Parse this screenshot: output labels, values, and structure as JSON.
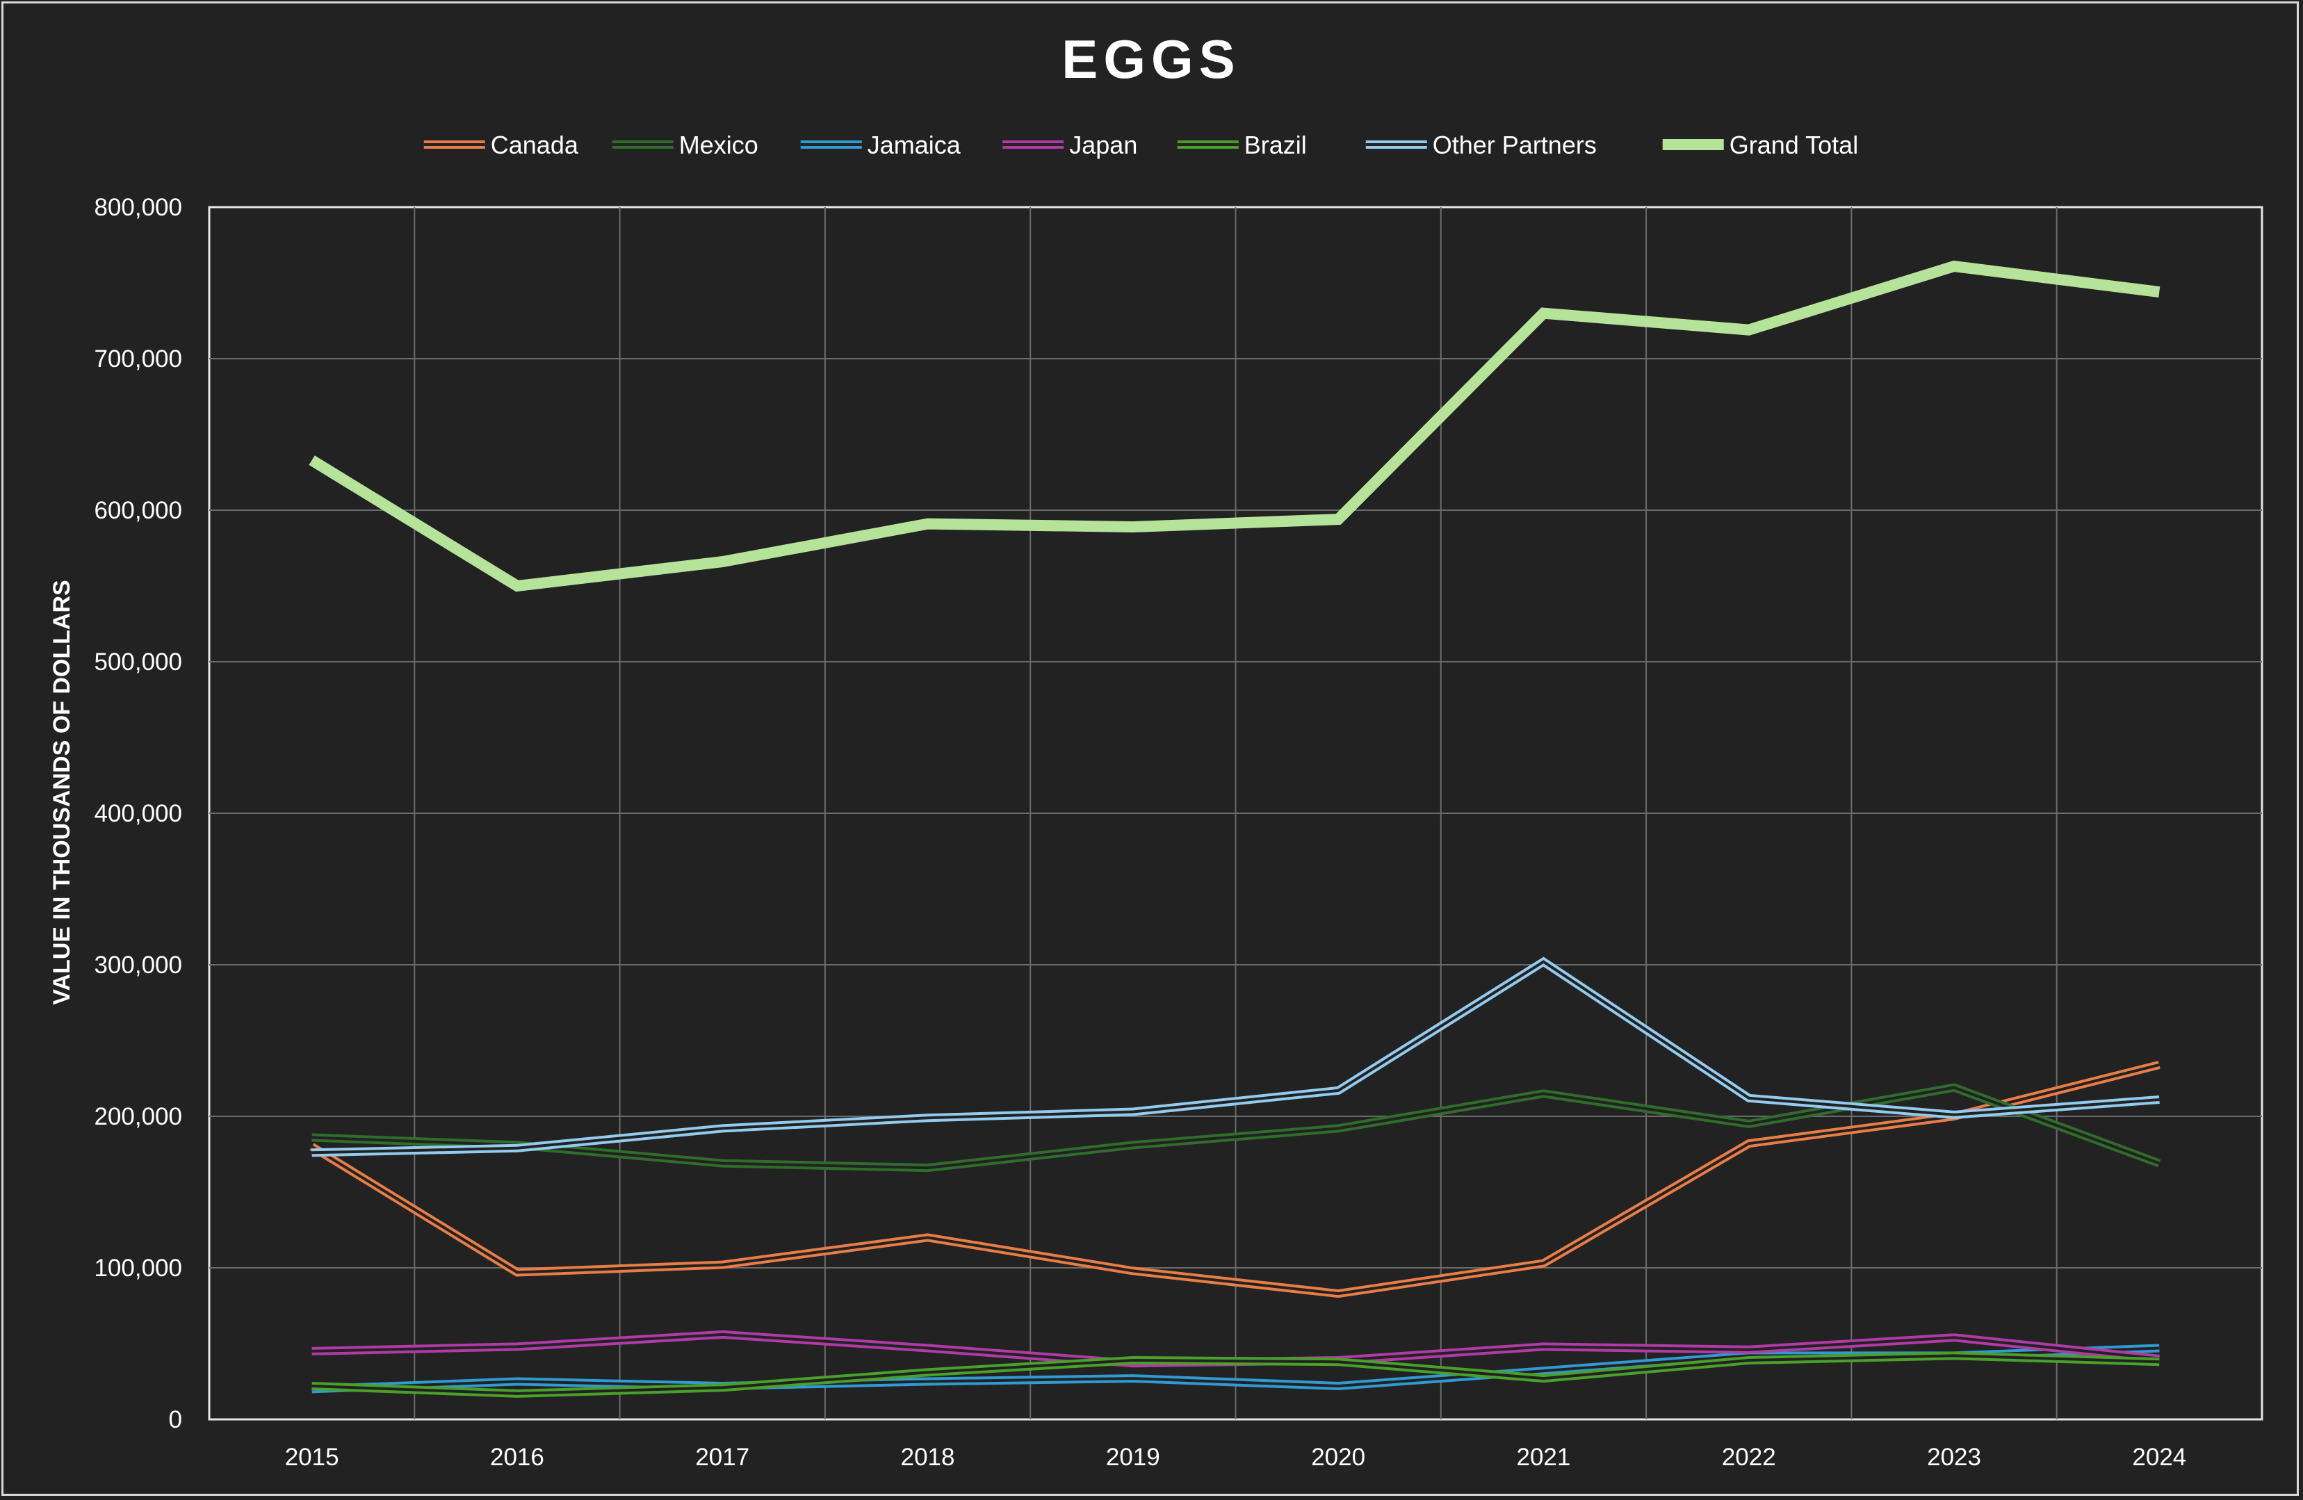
{
  "chart_data": {
    "type": "line",
    "title": "EGGS",
    "xlabel": "",
    "ylabel": "VALUE IN THOUSANDS OF DOLLARS",
    "ylim": [
      0,
      800000
    ],
    "yticks": [
      0,
      100000,
      200000,
      300000,
      400000,
      500000,
      600000,
      700000,
      800000
    ],
    "ytick_labels": [
      "0",
      "100,000",
      "200,000",
      "300,000",
      "400,000",
      "500,000",
      "600,000",
      "700,000",
      "800,000"
    ],
    "categories": [
      "2015",
      "2016",
      "2017",
      "2018",
      "2019",
      "2020",
      "2021",
      "2022",
      "2023",
      "2024"
    ],
    "grid": true,
    "legend_position": "top",
    "series": [
      {
        "name": "Canada",
        "color": "#e97d46",
        "style": "double",
        "values": [
          180000,
          97000,
          102000,
          120000,
          98000,
          83000,
          103000,
          182000,
          200000,
          234000
        ]
      },
      {
        "name": "Mexico",
        "color": "#2f6e2a",
        "style": "double",
        "values": [
          186000,
          181000,
          169000,
          166000,
          181000,
          192000,
          215000,
          195000,
          219000,
          169000
        ]
      },
      {
        "name": "Jamaica",
        "color": "#2e9bd3",
        "style": "double",
        "values": [
          20000,
          25000,
          22000,
          25000,
          27000,
          22000,
          32000,
          42000,
          42000,
          47000
        ]
      },
      {
        "name": "Japan",
        "color": "#b03aa6",
        "style": "double",
        "values": [
          45000,
          48000,
          56000,
          47000,
          37000,
          39000,
          48000,
          46000,
          54000,
          40000
        ]
      },
      {
        "name": "Brazil",
        "color": "#4aa12a",
        "style": "double",
        "values": [
          22000,
          17000,
          21000,
          31000,
          39000,
          38000,
          27000,
          39000,
          42000,
          38000
        ]
      },
      {
        "name": "Other Partners",
        "color": "#92cbee",
        "style": "double",
        "values": [
          176000,
          179000,
          192000,
          199000,
          203000,
          217000,
          302000,
          212000,
          201000,
          211000
        ]
      },
      {
        "name": "Grand Total",
        "color": "#b6e39a",
        "style": "thick",
        "values": [
          633000,
          550000,
          566000,
          591000,
          589000,
          594000,
          730000,
          719000,
          761000,
          744000
        ]
      }
    ]
  }
}
